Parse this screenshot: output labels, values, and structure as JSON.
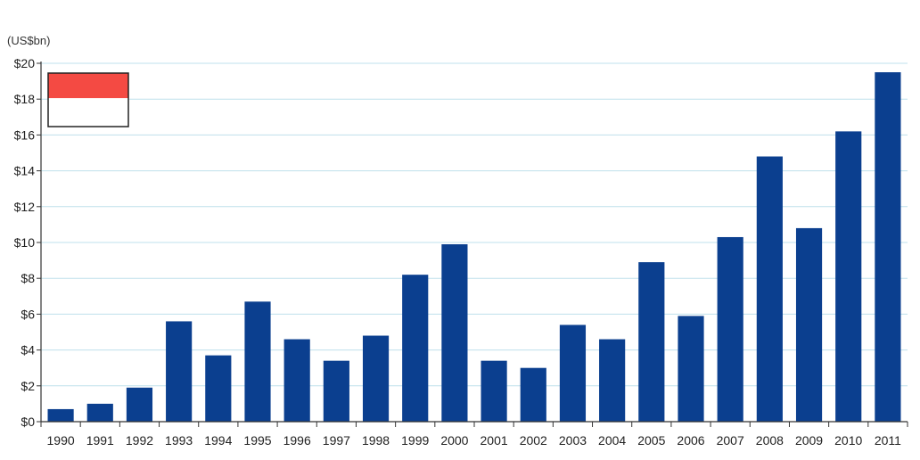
{
  "unit_label": "(US$bn)",
  "legend": {
    "swatch_top_color": "#f44a43",
    "swatch_bottom_color": "#ffffff"
  },
  "colors": {
    "bar": "#0b3f8f",
    "grid": "#bfe0ec",
    "axis": "#333333",
    "text": "#222222"
  },
  "chart_data": {
    "type": "bar",
    "title": "",
    "xlabel": "",
    "ylabel": "(US$bn)",
    "ylim": [
      0,
      20
    ],
    "y_ticks": [
      0,
      2,
      4,
      6,
      8,
      10,
      12,
      14,
      16,
      18,
      20
    ],
    "y_tick_labels": [
      "$0",
      "$2",
      "$4",
      "$6",
      "$8",
      "$10",
      "$12",
      "$14",
      "$16",
      "$18",
      "$20"
    ],
    "grid": true,
    "categories": [
      "1990",
      "1991",
      "1992",
      "1993",
      "1994",
      "1995",
      "1996",
      "1997",
      "1998",
      "1999",
      "2000",
      "2001",
      "2002",
      "2003",
      "2004",
      "2005",
      "2006",
      "2007",
      "2008",
      "2009",
      "2010",
      "2011"
    ],
    "values": [
      0.7,
      1.0,
      1.9,
      5.6,
      3.7,
      6.7,
      4.6,
      3.4,
      4.8,
      8.2,
      9.9,
      3.4,
      3.0,
      5.4,
      4.6,
      8.9,
      5.9,
      10.3,
      14.8,
      10.8,
      16.2,
      19.5
    ]
  }
}
